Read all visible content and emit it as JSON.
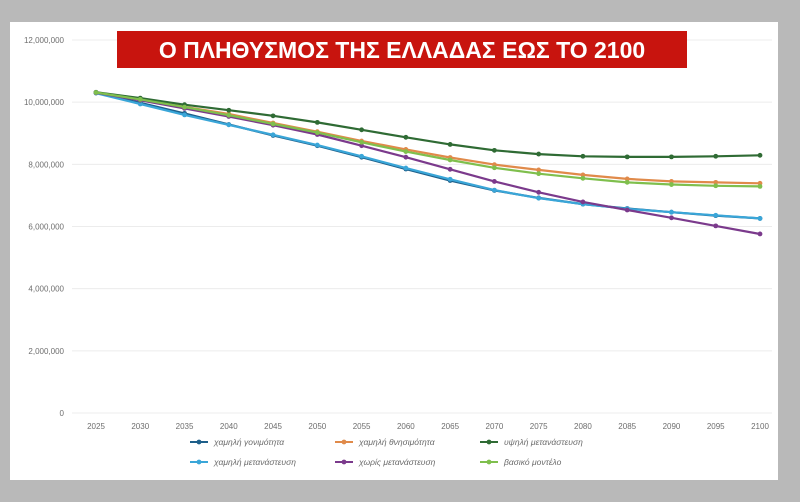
{
  "chart_data": {
    "type": "line",
    "title": "Ο ΠΛΗΘΥΣΜΟΣ ΤΗΣ ΕΛΛΑΔΑΣ ΕΩΣ ΤΟ 2100",
    "xlabel": "",
    "ylabel": "",
    "x": [
      "2025",
      "2030",
      "2035",
      "2040",
      "2045",
      "2050",
      "2055",
      "2060",
      "2065",
      "2070",
      "2075",
      "2080",
      "2085",
      "2090",
      "2095",
      "2100"
    ],
    "yticks": [
      "0",
      "2,000,000",
      "4,000,000",
      "6,000,000",
      "8,000,000",
      "10,000,000",
      "12,000,000"
    ],
    "ylim": [
      0,
      12000000
    ],
    "grid": "horizontal",
    "legend_position": "bottom",
    "series": [
      {
        "name": "χαμηλή γονιμότητα",
        "color": "#1d5f8a",
        "values": [
          10300000,
          9980000,
          9640000,
          9280000,
          8930000,
          8600000,
          8230000,
          7850000,
          7480000,
          7160000,
          6920000,
          6720000,
          6580000,
          6460000,
          6350000,
          6260000
        ]
      },
      {
        "name": "χαμηλή θνησιμότητα",
        "color": "#e08a4a",
        "values": [
          10310000,
          10100000,
          9850000,
          9620000,
          9330000,
          9050000,
          8750000,
          8480000,
          8220000,
          7990000,
          7820000,
          7660000,
          7530000,
          7450000,
          7420000,
          7390000
        ]
      },
      {
        "name": "υψηλή μετανάστευση",
        "color": "#2f6b34",
        "values": [
          10320000,
          10130000,
          9920000,
          9740000,
          9560000,
          9350000,
          9110000,
          8870000,
          8640000,
          8450000,
          8330000,
          8260000,
          8240000,
          8240000,
          8260000,
          8290000
        ]
      },
      {
        "name": "χαμηλή μετανάστευση",
        "color": "#3aa6d8",
        "values": [
          10290000,
          9940000,
          9590000,
          9270000,
          8950000,
          8620000,
          8260000,
          7880000,
          7520000,
          7170000,
          6910000,
          6720000,
          6570000,
          6460000,
          6360000,
          6260000
        ]
      },
      {
        "name": "χωρίς μετανάστευση",
        "color": "#7b3a8c",
        "values": [
          10300000,
          10060000,
          9800000,
          9540000,
          9260000,
          8960000,
          8600000,
          8230000,
          7840000,
          7450000,
          7100000,
          6790000,
          6530000,
          6280000,
          6020000,
          5760000
        ]
      },
      {
        "name": "βασικό μοντέλο",
        "color": "#7fbf4d",
        "values": [
          10310000,
          10090000,
          9840000,
          9580000,
          9300000,
          9020000,
          8710000,
          8410000,
          8140000,
          7890000,
          7700000,
          7550000,
          7420000,
          7350000,
          7310000,
          7290000
        ]
      }
    ]
  }
}
